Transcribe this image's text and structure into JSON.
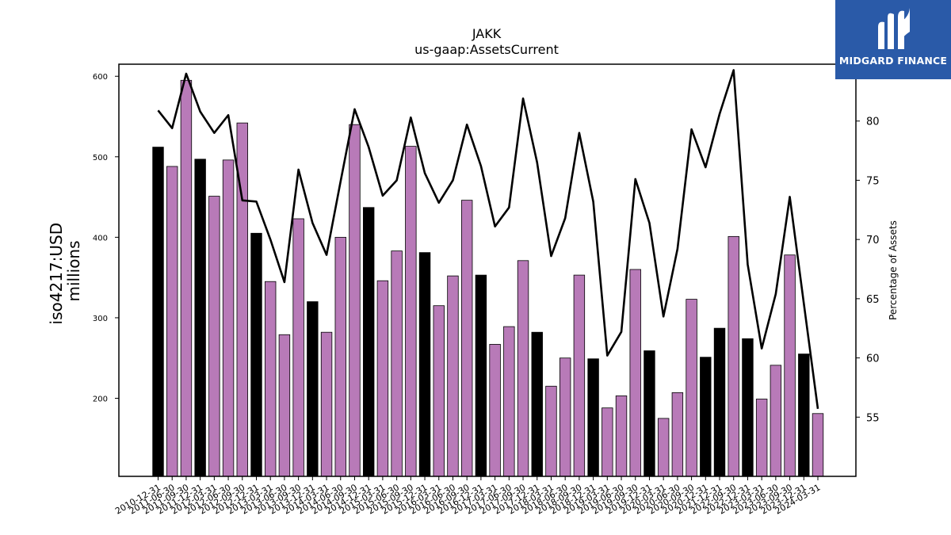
{
  "logo": {
    "text": "MIDGARD FINANCE"
  },
  "chart_data": {
    "type": "bar",
    "title": "JAKK",
    "subtitle": "us-gaap:AssetsCurrent",
    "ylabel": "iso4217:USD\nmillions",
    "y2label": "Percentage of Assets",
    "ylim": [
      103,
      615
    ],
    "y2lim": [
      50.0,
      84.8
    ],
    "yticks": [
      200,
      300,
      400,
      500,
      600
    ],
    "y2ticks": [
      55,
      60,
      65,
      70,
      75,
      80
    ],
    "colors": {
      "annual": "#000000",
      "quarterly": "#b87ab8",
      "line": "#000000"
    },
    "categories": [
      "2010-12-31",
      "2011-06-30",
      "2011-09-30",
      "2011-12-31",
      "2012-03-31",
      "2012-06-30",
      "2012-09-30",
      "2012-12-31",
      "2013-03-31",
      "2013-06-30",
      "2013-09-30",
      "2013-12-31",
      "2014-03-31",
      "2014-06-30",
      "2014-09-30",
      "2014-12-31",
      "2015-03-31",
      "2015-06-30",
      "2015-09-30",
      "2015-12-31",
      "2016-03-31",
      "2016-06-30",
      "2016-09-30",
      "2016-12-31",
      "2017-03-31",
      "2017-06-30",
      "2017-09-30",
      "2017-12-31",
      "2018-03-31",
      "2018-06-30",
      "2018-09-30",
      "2018-12-31",
      "2019-03-31",
      "2019-06-30",
      "2019-09-30",
      "2019-12-31",
      "2020-03-31",
      "2020-06-30",
      "2020-09-30",
      "2020-12-31",
      "2021-12-31",
      "2022-09-30",
      "2022-12-31",
      "2023-03-31",
      "2023-06-30",
      "2023-09-30",
      "2023-12-31",
      "2024-03-31"
    ],
    "series": [
      {
        "type": "bar",
        "values": [
          512,
          488,
          595,
          497,
          451,
          496,
          542,
          405,
          345,
          279,
          423,
          320,
          282,
          400,
          540,
          437,
          346,
          383,
          513,
          381,
          315,
          352,
          446,
          353,
          267,
          289,
          371,
          282,
          215,
          250,
          353,
          249,
          188,
          203,
          360,
          259,
          175,
          207,
          323,
          251,
          287,
          401,
          274,
          199,
          241,
          378,
          255,
          181
        ],
        "annual": [
          true,
          false,
          false,
          true,
          false,
          false,
          false,
          true,
          false,
          false,
          false,
          true,
          false,
          false,
          false,
          true,
          false,
          false,
          false,
          true,
          false,
          false,
          false,
          true,
          false,
          false,
          false,
          true,
          false,
          false,
          false,
          true,
          false,
          false,
          false,
          true,
          false,
          false,
          false,
          true,
          true,
          false,
          true,
          false,
          false,
          false,
          true,
          false
        ]
      },
      {
        "type": "line",
        "axis": "y2",
        "values": [
          80.9,
          79.4,
          84.0,
          80.8,
          79.0,
          80.5,
          73.3,
          73.2,
          70.0,
          66.4,
          75.9,
          71.4,
          68.7,
          74.9,
          81.0,
          77.8,
          73.7,
          75.0,
          80.3,
          75.6,
          73.1,
          75.0,
          79.7,
          76.2,
          71.1,
          72.7,
          81.9,
          76.5,
          68.6,
          71.8,
          79.0,
          73.2,
          60.2,
          62.2,
          75.1,
          71.4,
          63.5,
          69.2,
          79.3,
          76.1,
          80.6,
          84.3,
          67.9,
          60.8,
          65.4,
          73.6,
          64.6,
          55.7
        ]
      }
    ]
  }
}
